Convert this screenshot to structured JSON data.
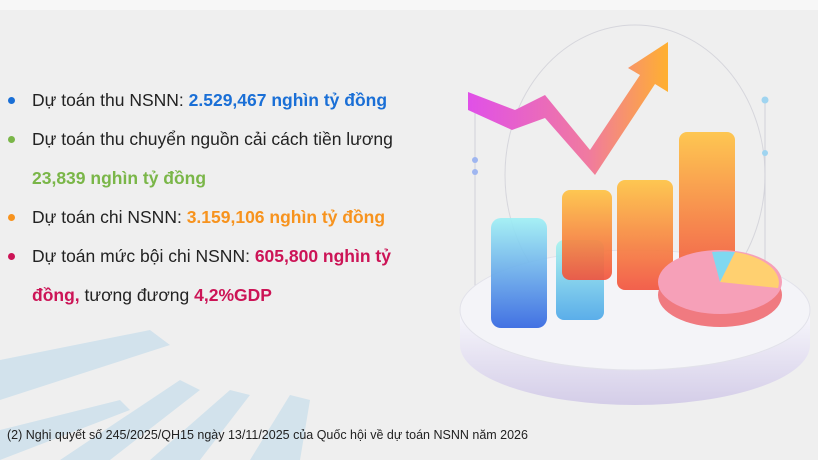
{
  "colors": {
    "blue": "#1a6fd6",
    "green": "#7ab648",
    "orange": "#f7931e",
    "crimson": "#cc1456"
  },
  "items": [
    {
      "label": "Dự toán thu NSNN: ",
      "value": "2.529,467  nghìn tỷ đồng",
      "bullet_color": "#1a6fd6"
    },
    {
      "label": "Dự toán thu chuyển nguồn cải cách tiền lương",
      "value": "23,839 nghìn tỷ đồng",
      "bullet_color": "#7ab648"
    },
    {
      "label": "Dự toán chi NSNN: ",
      "value": "3.159,106 nghìn tỷ đồng",
      "bullet_color": "#f7931e"
    },
    {
      "label": "Dự toán mức bội chi NSNN: ",
      "value": "605,800 nghìn tỷ",
      "value_cont": "đồng,",
      "suffix": " tương đương ",
      "suffix_value": "4,2%GDP",
      "bullet_color": "#cc1456"
    }
  ],
  "footnote": "(2) Nghị quyết số 245/2025/QH15 ngày 13/11/2025 của Quốc hội về dự toán NSNN năm 2026",
  "illustration": "3d-bar-chart-with-rising-arrow-and-pie-chart"
}
